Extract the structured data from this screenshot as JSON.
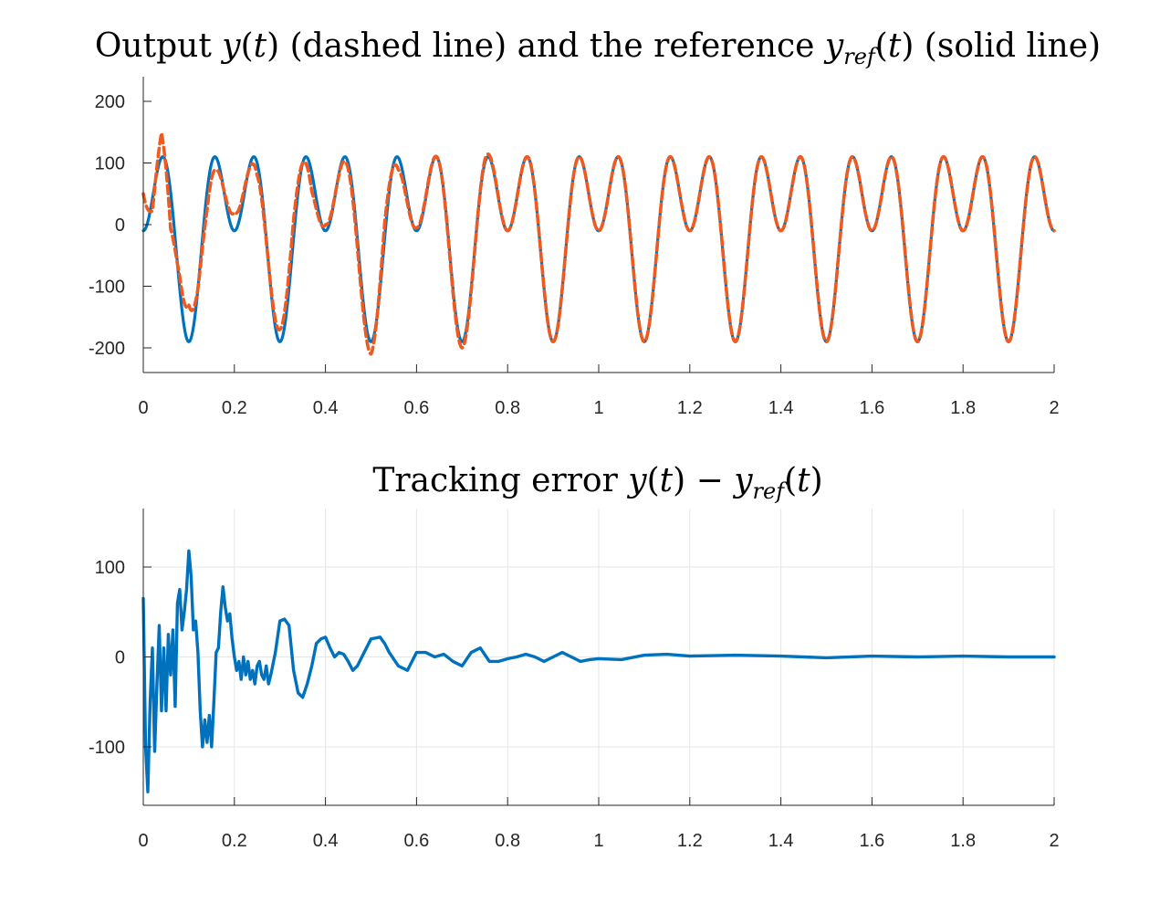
{
  "colors": {
    "reference": "#0072BD",
    "output": "#EE5A1F",
    "error": "#0072BD",
    "axis": "#262626",
    "grid": "#E6E6E6"
  },
  "chart_data": [
    {
      "type": "line",
      "title": {
        "t1": "Output ",
        "t2": "y",
        "t3": "(",
        "t4": "t",
        "t5": ") (dashed line) and the reference ",
        "t6": "y",
        "t7": "ref",
        "t8": "(",
        "t9": "t",
        "t10": ") (solid line)"
      },
      "xlim": [
        0,
        2
      ],
      "ylim": [
        -240,
        240
      ],
      "xticks": [
        0,
        0.2,
        0.4,
        0.6,
        0.8,
        1,
        1.2,
        1.4,
        1.6,
        1.8,
        2
      ],
      "xtick_labels": [
        "0",
        "0.2",
        "0.4",
        "0.6",
        "0.8",
        "1",
        "1.2",
        "1.4",
        "1.6",
        "1.8",
        "2"
      ],
      "yticks": [
        -200,
        -100,
        0,
        100,
        200
      ],
      "ytick_labels": [
        "-200",
        "-100",
        "0",
        "100",
        "200"
      ],
      "grid": false,
      "series": [
        {
          "style": "solid",
          "model": "reference",
          "components": [
            {
              "amplitude": 90,
              "frequency": 5,
              "phase": 1.5708
            },
            {
              "amplitude": 100,
              "frequency": 10,
              "phase": -1.5708
            }
          ],
          "t_range": [
            0,
            2
          ]
        },
        {
          "style": "dashed",
          "model": "reference_plus_transient",
          "transient_t": [
            0,
            0.02,
            0.04,
            0.06,
            0.08,
            0.1,
            0.12,
            0.14,
            0.16,
            0.2,
            0.25,
            0.3,
            0.33,
            0.37,
            0.4,
            0.45,
            0.5,
            0.53,
            0.56,
            0.6,
            0.65,
            0.7,
            0.75,
            0.8,
            1.0,
            1.2,
            1.5,
            2.0
          ],
          "transient_v": [
            60,
            -20,
            40,
            -60,
            20,
            60,
            0,
            -30,
            -20,
            30,
            -20,
            20,
            30,
            -30,
            10,
            -10,
            -20,
            25,
            -20,
            5,
            0,
            -10,
            5,
            0,
            0,
            0,
            0,
            0
          ],
          "t_range": [
            0,
            2
          ]
        }
      ]
    },
    {
      "type": "line",
      "title": {
        "t1": "Tracking error ",
        "t2": "y",
        "t3": "(",
        "t4": "t",
        "t5": ") − ",
        "t6": "y",
        "t7": "ref",
        "t8": "(",
        "t9": "t",
        "t10": ")"
      },
      "xlim": [
        0,
        2
      ],
      "ylim": [
        -165,
        165
      ],
      "xticks": [
        0,
        0.2,
        0.4,
        0.6,
        0.8,
        1,
        1.2,
        1.4,
        1.6,
        1.8,
        2
      ],
      "xtick_labels": [
        "0",
        "0.2",
        "0.4",
        "0.6",
        "0.8",
        "1",
        "1.2",
        "1.4",
        "1.6",
        "1.8",
        "2"
      ],
      "yticks": [
        -100,
        0,
        100
      ],
      "ytick_labels": [
        "-100",
        "0",
        "100"
      ],
      "grid": true,
      "series": [
        {
          "style": "solid",
          "t": [
            0,
            0.005,
            0.01,
            0.015,
            0.02,
            0.025,
            0.03,
            0.035,
            0.04,
            0.045,
            0.05,
            0.055,
            0.06,
            0.065,
            0.07,
            0.075,
            0.08,
            0.085,
            0.09,
            0.095,
            0.1,
            0.105,
            0.11,
            0.115,
            0.12,
            0.125,
            0.13,
            0.135,
            0.14,
            0.145,
            0.15,
            0.155,
            0.16,
            0.165,
            0.17,
            0.175,
            0.18,
            0.185,
            0.19,
            0.195,
            0.2,
            0.205,
            0.21,
            0.215,
            0.22,
            0.225,
            0.23,
            0.235,
            0.24,
            0.245,
            0.25,
            0.255,
            0.26,
            0.265,
            0.27,
            0.275,
            0.28,
            0.29,
            0.3,
            0.31,
            0.32,
            0.33,
            0.34,
            0.35,
            0.36,
            0.37,
            0.38,
            0.39,
            0.4,
            0.41,
            0.42,
            0.43,
            0.44,
            0.45,
            0.46,
            0.47,
            0.48,
            0.5,
            0.52,
            0.53,
            0.54,
            0.56,
            0.58,
            0.6,
            0.62,
            0.64,
            0.66,
            0.68,
            0.7,
            0.72,
            0.74,
            0.76,
            0.78,
            0.8,
            0.82,
            0.84,
            0.86,
            0.88,
            0.9,
            0.92,
            0.94,
            0.96,
            0.98,
            1.0,
            1.05,
            1.1,
            1.15,
            1.2,
            1.3,
            1.4,
            1.5,
            1.6,
            1.7,
            1.8,
            1.9,
            2.0
          ],
          "v": [
            65,
            -100,
            -150,
            -50,
            10,
            -105,
            -30,
            35,
            -60,
            10,
            -60,
            25,
            -20,
            30,
            -55,
            60,
            75,
            30,
            50,
            75,
            118,
            90,
            30,
            40,
            5,
            -60,
            -100,
            -70,
            -95,
            -65,
            -100,
            -50,
            5,
            10,
            50,
            78,
            55,
            40,
            48,
            20,
            0,
            -15,
            -5,
            -25,
            0,
            -20,
            -5,
            -25,
            -15,
            -30,
            -10,
            -5,
            -20,
            -25,
            -10,
            -30,
            -20,
            5,
            40,
            42,
            35,
            -15,
            -40,
            -45,
            -30,
            -10,
            15,
            20,
            22,
            10,
            0,
            5,
            3,
            -5,
            -15,
            -10,
            0,
            20,
            22,
            15,
            5,
            -10,
            -15,
            5,
            5,
            0,
            3,
            -5,
            -10,
            5,
            10,
            -5,
            -5,
            -2,
            0,
            3,
            0,
            -5,
            0,
            5,
            0,
            -5,
            -3,
            -2,
            -3,
            2,
            3,
            1,
            2,
            1,
            -1,
            1,
            0,
            1,
            0,
            0
          ]
        }
      ]
    }
  ]
}
